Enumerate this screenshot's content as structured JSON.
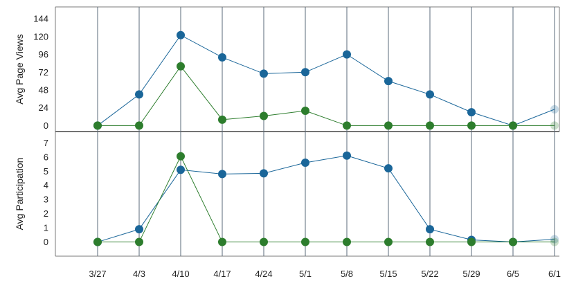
{
  "chart_data": [
    {
      "type": "line",
      "ylabel": "Avg Page Views",
      "ylim": [
        -8,
        160
      ],
      "yticks": [
        0,
        24,
        48,
        72,
        96,
        120,
        144
      ],
      "categories": [
        "3/27",
        "4/3",
        "4/10",
        "4/17",
        "4/24",
        "5/1",
        "5/8",
        "5/15",
        "5/22",
        "5/29",
        "6/5",
        "6/1"
      ],
      "series": [
        {
          "color": "#1a6699",
          "values": [
            0,
            42,
            122,
            92,
            70,
            72,
            96,
            60,
            42,
            18,
            0,
            22
          ]
        },
        {
          "color": "#2d7d2d",
          "values": [
            0,
            0,
            80,
            8,
            13,
            20,
            0,
            0,
            0,
            0,
            0,
            0
          ]
        }
      ]
    },
    {
      "type": "line",
      "ylabel": "Avg Participation",
      "ylim": [
        -1,
        7.8
      ],
      "yticks": [
        0,
        1,
        2,
        3,
        4,
        5,
        6,
        7
      ],
      "categories": [
        "3/27",
        "4/3",
        "4/10",
        "4/17",
        "4/24",
        "5/1",
        "5/8",
        "5/15",
        "5/22",
        "5/29",
        "6/5",
        "6/1"
      ],
      "series": [
        {
          "color": "#1a6699",
          "values": [
            0,
            0.9,
            5.1,
            4.8,
            4.85,
            5.6,
            6.1,
            5.2,
            0.9,
            0.15,
            0,
            0.2
          ]
        },
        {
          "color": "#2d7d2d",
          "values": [
            0,
            0,
            6.05,
            0,
            0,
            0,
            0,
            0,
            0,
            0,
            0,
            0
          ]
        }
      ]
    }
  ],
  "x_tick_labels": [
    "3/27",
    "4/3",
    "4/10",
    "4/17",
    "4/24",
    "5/1",
    "5/8",
    "5/15",
    "5/22",
    "5/29",
    "6/5",
    "6/1"
  ],
  "colors": {
    "blue": "#1a6699",
    "green": "#2d7d2d",
    "grid": "#5a6a78",
    "frame": "#7a7a7a"
  }
}
